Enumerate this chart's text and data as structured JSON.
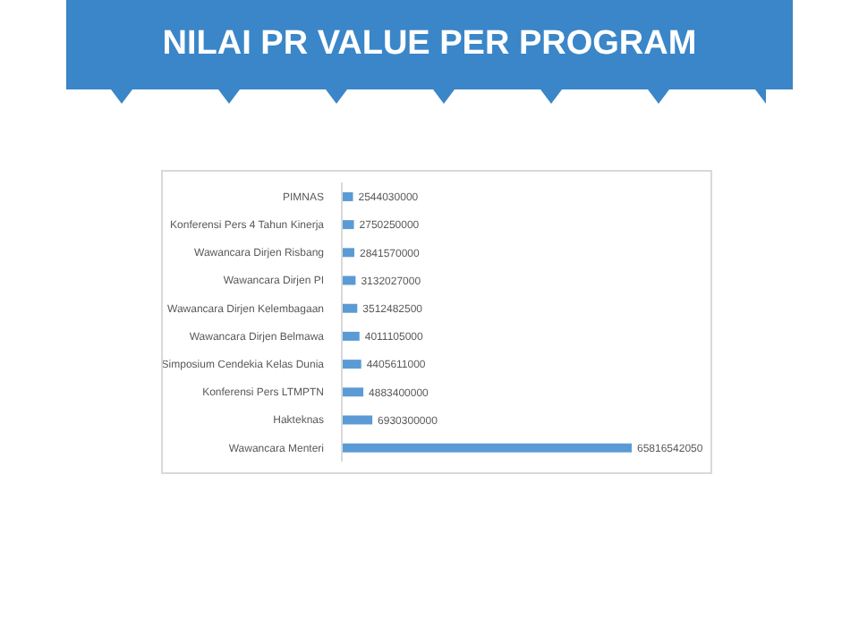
{
  "chart_data": {
    "type": "bar",
    "title": "NILAI PR VALUE PER PROGRAM",
    "orientation": "horizontal",
    "categories": [
      "PIMNAS",
      "Konferensi Pers 4 Tahun Kinerja",
      "Wawancara Dirjen Risbang",
      "Wawancara Dirjen PI",
      "Wawancara Dirjen Kelembagaan",
      "Wawancara Dirjen Belmawa",
      "Simposium Cendekia Kelas Dunia",
      "Konferensi Pers LTMPTN",
      "Hakteknas",
      "Wawancara Menteri"
    ],
    "values": [
      2544030000,
      2750250000,
      2841570000,
      3132027000,
      3512482500,
      4011105000,
      4405611000,
      4883400000,
      6930300000,
      65816542050
    ],
    "color": "#5b9bd5",
    "data_labels": true
  }
}
